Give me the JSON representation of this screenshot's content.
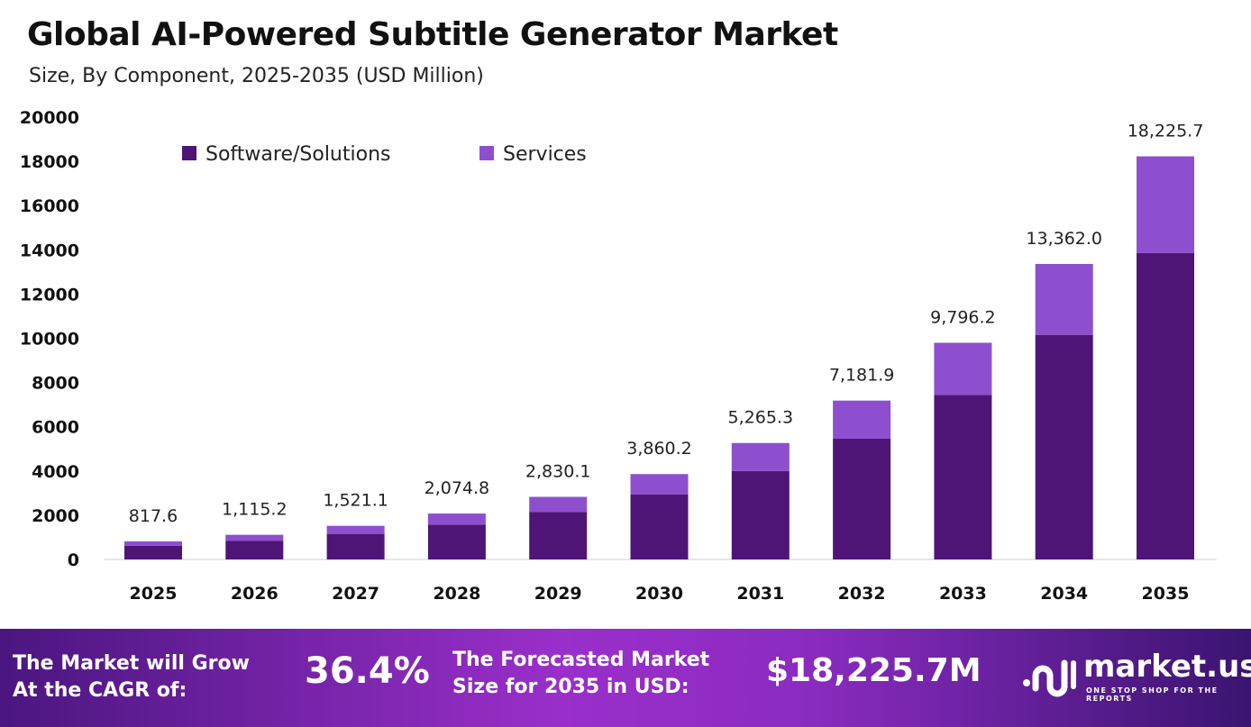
{
  "chart_data": {
    "type": "bar",
    "stacked": true,
    "title": "Global AI-Powered Subtitle Generator Market",
    "subtitle": "Size, By Component, 2025-2035 (USD Million)",
    "categories": [
      "2025",
      "2026",
      "2027",
      "2028",
      "2029",
      "2030",
      "2031",
      "2032",
      "2033",
      "2034",
      "2035"
    ],
    "series": [
      {
        "name": "Software/Solutions",
        "color": "#4e1577",
        "values": [
          621,
          848,
          1156,
          1577,
          2151,
          2934,
          4002,
          5458,
          7445,
          10155,
          13852
        ]
      },
      {
        "name": "Services",
        "color": "#8e4fcf",
        "values": [
          196.6,
          267.2,
          365.1,
          497.8,
          679.1,
          926.2,
          1263.3,
          1723.9,
          2351.2,
          3207.0,
          4373.7
        ]
      }
    ],
    "totals": [
      "817.6",
      "1,115.2",
      "1,521.1",
      "2,074.8",
      "2,830.1",
      "3,860.2",
      "5,265.3",
      "7,181.9",
      "9,796.2",
      "13,362.0",
      "18,225.7"
    ],
    "yticks": [
      "0",
      "2000",
      "4000",
      "6000",
      "8000",
      "10000",
      "12000",
      "14000",
      "16000",
      "18000",
      "20000"
    ],
    "ylim": [
      0,
      20000
    ],
    "grid": false,
    "legend": "top-left"
  },
  "footer": {
    "cagr_label_1": "The Market will Grow",
    "cagr_label_2": "At the CAGR of:",
    "cagr": "36.4%",
    "forecast_label_1": "The Forecasted Market",
    "forecast_label_2": "Size for 2035 in USD:",
    "forecast": "$18,225.7M",
    "brand": "market.us",
    "tagline": "ONE STOP SHOP FOR THE REPORTS"
  }
}
